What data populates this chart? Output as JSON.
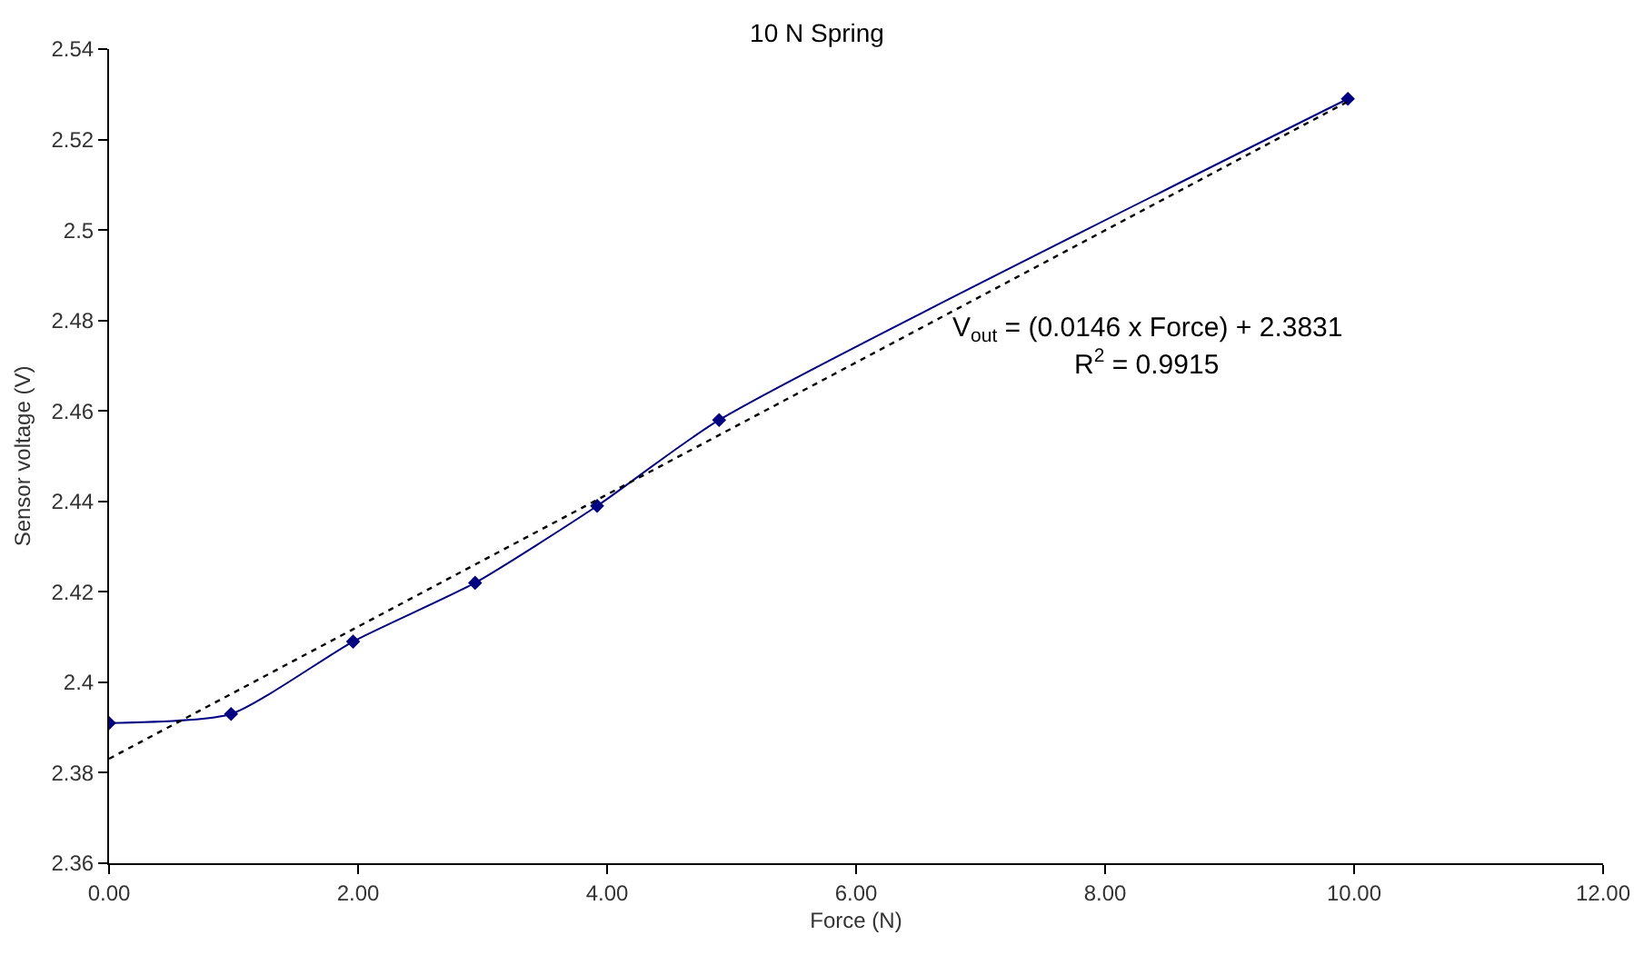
{
  "chart_data": {
    "type": "line",
    "title": "10 N Spring",
    "xlabel": "Force (N)",
    "ylabel": "Sensor voltage (V)",
    "xlim": [
      0,
      12
    ],
    "xticks": [
      {
        "value": 0,
        "label": "0.00"
      },
      {
        "value": 2,
        "label": "2.00"
      },
      {
        "value": 4,
        "label": "4.00"
      },
      {
        "value": 6,
        "label": "6.00"
      },
      {
        "value": 8,
        "label": "8.00"
      },
      {
        "value": 10,
        "label": "10.00"
      },
      {
        "value": 12,
        "label": "12.00"
      }
    ],
    "ylim": [
      2.36,
      2.54
    ],
    "yticks": [
      2.36,
      2.38,
      2.4,
      2.42,
      2.44,
      2.46,
      2.48,
      2.5,
      2.52,
      2.54
    ],
    "grid": false,
    "series": [
      {
        "color": "#000080",
        "marker": "diamond",
        "line_style": "solid",
        "x": [
          0,
          0.98,
          1.96,
          2.94,
          3.92,
          4.9,
          9.95
        ],
        "values": [
          2.391,
          2.393,
          2.409,
          2.422,
          2.439,
          2.458,
          2.529
        ]
      },
      {
        "color": "#000000",
        "marker": "none",
        "line_style": "dotted",
        "x": [
          0,
          9.95
        ],
        "values": [
          2.3831,
          2.5284
        ]
      }
    ],
    "annotations": [
      "V$_{out}$ = (0.0146 x Force) + 2.3831",
      "R$^{2}$ = 0.9915"
    ]
  }
}
